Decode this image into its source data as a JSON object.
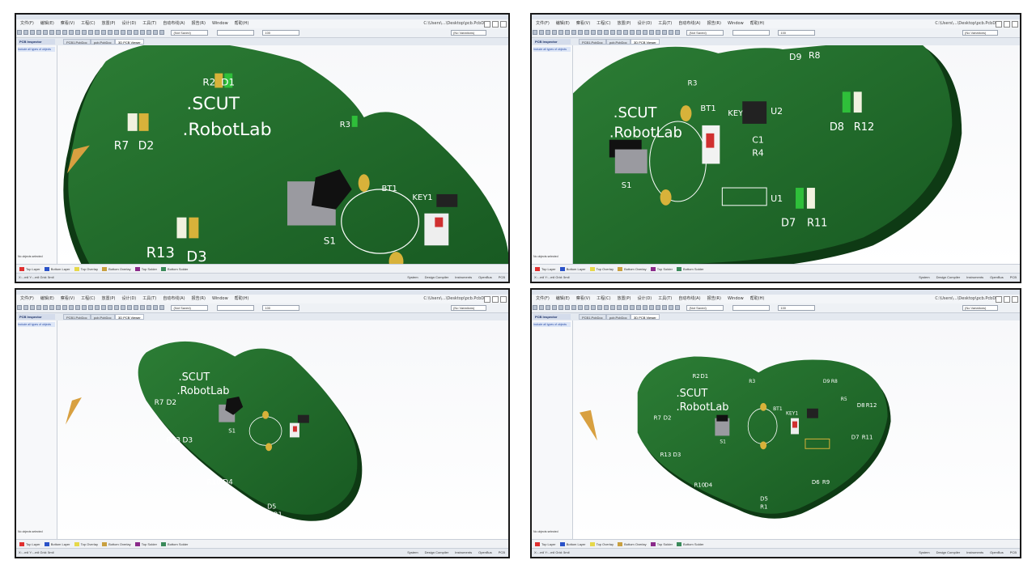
{
  "menus": [
    "文件(F)",
    "编辑(E)",
    "察看(V)",
    "工程(C)",
    "放置(P)",
    "设计(D)",
    "工具(T)",
    "自动布线(A)",
    "报告(R)",
    "Window",
    "帮助(H)"
  ],
  "file_path": "C:\\Users\\...\\Desktop\\pcb.PcbDoc",
  "toolbar": {
    "filter_combo": "(Not Saved)",
    "grid_combo": "(No Variations)",
    "num_combo": "100"
  },
  "panel_tab": "PCB Inspector",
  "doc_tabs": [
    "PCB1.PcbDoc",
    "pcb.PcbDoc",
    "3D PCB Viewer"
  ],
  "left_panel": {
    "row": "Include all types of objects",
    "bottom_label": "No objects selected"
  },
  "layers": {
    "items": [
      {
        "name": "Top Layer",
        "color": "#e03030"
      },
      {
        "name": "Bottom Layer",
        "color": "#2a52c8"
      },
      {
        "name": "Top Overlay",
        "color": "#e6d84a"
      },
      {
        "name": "Bottom Overlay",
        "color": "#c8a040"
      },
      {
        "name": "Top Solder",
        "color": "#8a2a8a"
      },
      {
        "name": "Bottom Solder",
        "color": "#3a8a5a"
      }
    ],
    "messages_label": "Messages"
  },
  "status": {
    "left": "X:...mil Y:...mil  Grid: 5mil",
    "mid": "Board Insight",
    "right": [
      "System",
      "Design Compiler",
      "Instruments",
      "OpenBus",
      "PCB",
      "Shortcuts"
    ]
  },
  "board": {
    "title1": ".SCUT",
    "title2": ".RobotLab",
    "labels": {
      "r2": "R2",
      "d1": "D1",
      "r7": "R7",
      "d2": "D2",
      "r13": "R13",
      "d3": "D3",
      "s1": "S1",
      "bt1": "BT1",
      "key1": "KEY1",
      "r3": "R3",
      "u2": "U2",
      "c1": "C1",
      "r4": "R4",
      "u1": "U1",
      "d9": "D9",
      "r8": "R8",
      "d8": "D8",
      "r12": "R12",
      "d7": "D7",
      "r11": "R11",
      "r10": "R10",
      "d4": "D4",
      "d5": "D5",
      "r1": "R1",
      "d6": "D6",
      "r9": "R9",
      "r5": "R5"
    }
  },
  "colors": {
    "board_green": "#1f6a2a",
    "board_edge": "#0f3d15",
    "pad_gold": "#d8b23a"
  }
}
